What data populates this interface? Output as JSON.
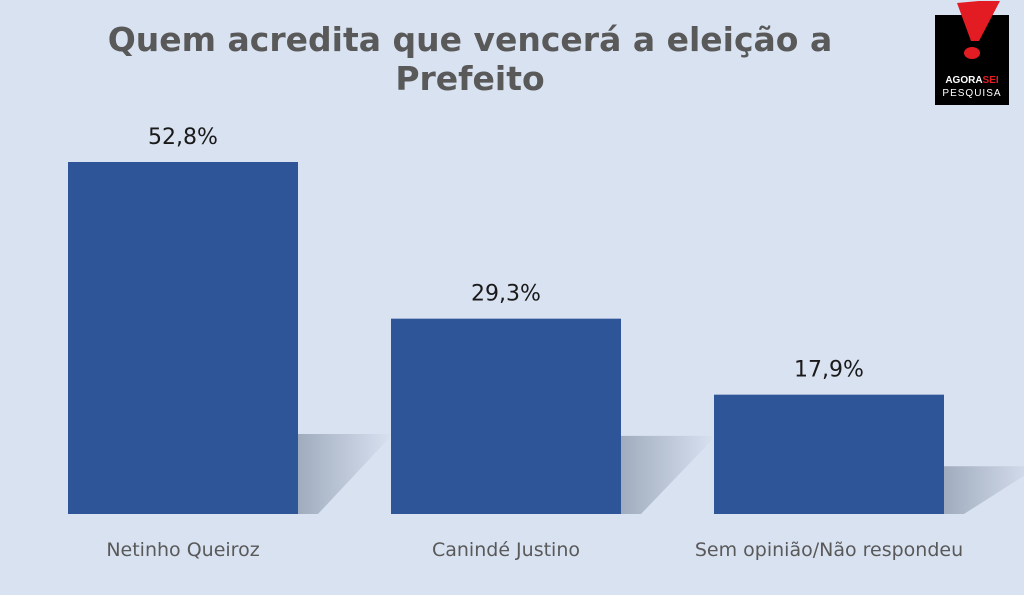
{
  "chart_data": {
    "type": "bar",
    "title": "Quem acredita que vencerá a eleição a Prefeito",
    "categories": [
      "Netinho Queiroz",
      "Canindé Justino",
      "Sem opinião/Não respondeu"
    ],
    "values": [
      52.8,
      29.3,
      17.9
    ],
    "data_labels": [
      "52,8%",
      "29,3%",
      "17,9%"
    ],
    "ylim": [
      0,
      55
    ],
    "grid": false,
    "bar_color": "#2e5597"
  },
  "logo": {
    "wordmark_main": "AGORA",
    "wordmark_accent": "SEI",
    "subtitle": "PESQUISA"
  },
  "colors": {
    "background": "#d9e2f1",
    "title": "#595959",
    "logo_red": "#e31b23"
  }
}
